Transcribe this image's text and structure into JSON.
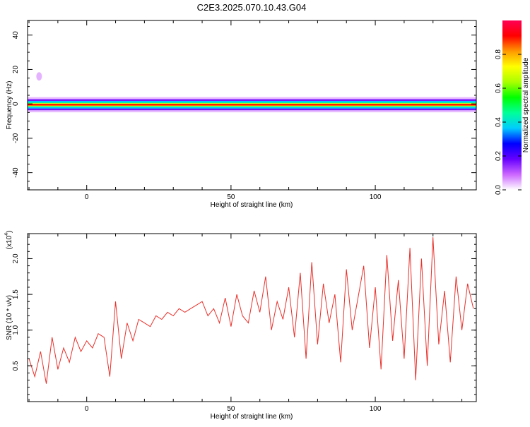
{
  "figure": {
    "title": "C2E3.2025.070.10.43.G04"
  },
  "chart_data": [
    {
      "type": "heatmap",
      "xlabel": "Height of straight line (km)",
      "ylabel": "Frequency (Hz)",
      "xlim": [
        -20.5,
        135
      ],
      "ylim": [
        -50,
        48.5
      ],
      "xticks": [
        0,
        50,
        100
      ],
      "yticks": [
        -40,
        -20,
        0,
        20,
        40
      ],
      "colorbar": {
        "label": "Normalized spectral amplitude",
        "range": [
          0,
          1
        ],
        "ticks": [
          "0.0",
          "0.2",
          "0.4",
          "0.6",
          "0.8"
        ],
        "colors": [
          "#ffffff",
          "#cc66ff",
          "#6600ff",
          "#0000ff",
          "#00ccff",
          "#00ff99",
          "#00ff00",
          "#aaff00",
          "#ffff00",
          "#ff9900",
          "#ff0000",
          "#ff0055"
        ]
      },
      "band_center_hz": -0.5,
      "band_halfwidth_hz": 4,
      "outlier_points": [
        {
          "x": -16.5,
          "y": 16
        }
      ],
      "grid": false
    },
    {
      "type": "line",
      "xlabel": "Height of straight line (km)",
      "ylabel": "SNR (10 * v/v)",
      "scale_label": "(x10",
      "scale_exp": "4",
      "xlim": [
        -20.5,
        135
      ],
      "ylim": [
        0,
        2.35
      ],
      "xticks": [
        0,
        50,
        100
      ],
      "yticks": [
        "0.5",
        "1.0",
        "1.5",
        "2.0"
      ],
      "grid": false,
      "series": [
        {
          "color": "#e8302a",
          "x": [
            -20,
            -18,
            -16,
            -14,
            -12,
            -10,
            -8,
            -6,
            -4,
            -2,
            0,
            2,
            4,
            6,
            8,
            10,
            12,
            14,
            16,
            18,
            20,
            22,
            24,
            26,
            28,
            30,
            32,
            34,
            36,
            38,
            40,
            42,
            44,
            46,
            48,
            50,
            52,
            54,
            56,
            58,
            60,
            62,
            64,
            66,
            68,
            70,
            72,
            74,
            76,
            78,
            80,
            82,
            84,
            86,
            88,
            90,
            92,
            94,
            96,
            98,
            100,
            102,
            104,
            106,
            108,
            110,
            112,
            114,
            116,
            118,
            120,
            122,
            124,
            126,
            128,
            130,
            132,
            134
          ],
          "y": [
            0.6,
            0.35,
            0.7,
            0.25,
            0.9,
            0.45,
            0.75,
            0.55,
            0.9,
            0.7,
            0.85,
            0.75,
            0.95,
            0.9,
            0.35,
            1.4,
            0.6,
            1.1,
            0.85,
            1.15,
            1.1,
            1.05,
            1.2,
            1.15,
            1.25,
            1.2,
            1.3,
            1.25,
            1.3,
            1.35,
            1.4,
            1.2,
            1.3,
            1.1,
            1.45,
            1.05,
            1.5,
            1.2,
            1.1,
            1.55,
            1.25,
            1.75,
            1.0,
            1.4,
            1.15,
            1.6,
            0.9,
            1.8,
            0.6,
            1.95,
            0.8,
            1.65,
            1.1,
            1.5,
            0.55,
            1.85,
            1.0,
            1.45,
            1.9,
            0.75,
            1.6,
            0.45,
            2.05,
            0.85,
            1.7,
            0.6,
            2.15,
            0.3,
            2.0,
            0.5,
            2.3,
            0.8,
            1.55,
            0.55,
            1.75,
            1.0,
            1.65,
            1.3
          ]
        }
      ]
    }
  ]
}
